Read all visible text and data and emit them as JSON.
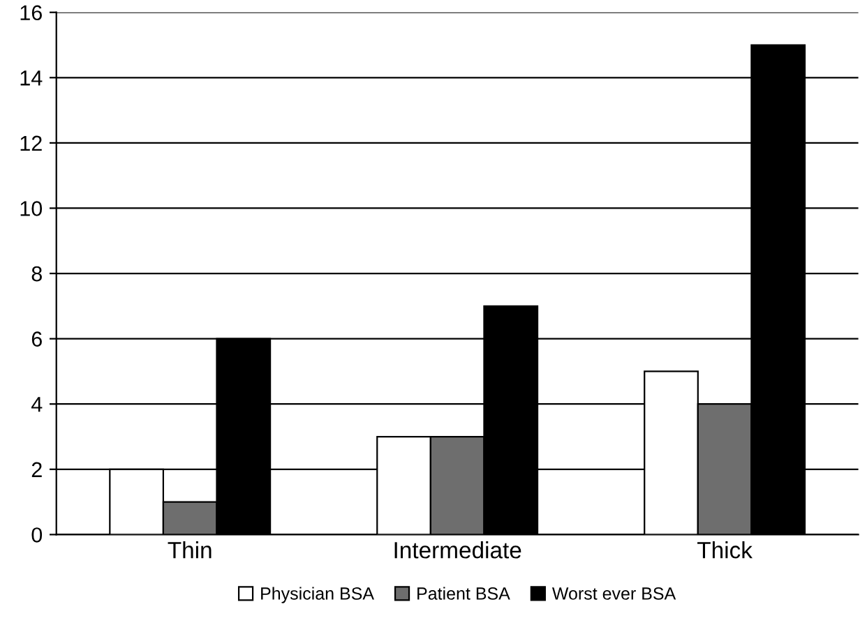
{
  "chart_data": {
    "type": "bar",
    "categories": [
      "Thin",
      "Intermediate",
      "Thick"
    ],
    "series": [
      {
        "name": "Physician BSA",
        "color": "#ffffff",
        "values": [
          2,
          3,
          5
        ]
      },
      {
        "name": "Patient BSA",
        "color": "#6e6e6e",
        "values": [
          1,
          3,
          4
        ]
      },
      {
        "name": "Worst ever BSA",
        "color": "#000000",
        "values": [
          6,
          7,
          15
        ]
      }
    ],
    "ylim": [
      0,
      16
    ],
    "yticks": [
      0,
      2,
      4,
      6,
      8,
      10,
      12,
      14,
      16
    ],
    "grid": "y",
    "legend": "bottom"
  }
}
